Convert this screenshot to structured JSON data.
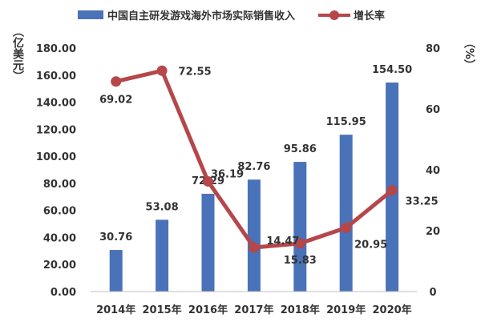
{
  "chart_data": {
    "type": "bar+line",
    "categories": [
      "2014年",
      "2015年",
      "2016年",
      "2017年",
      "2018年",
      "2019年",
      "2020年"
    ],
    "series": [
      {
        "name": "中国自主研发游戏海外市场实际销售收入",
        "type": "bar",
        "axis": "left",
        "color": "#4a72b8",
        "values": [
          30.76,
          53.08,
          72.29,
          82.76,
          95.86,
          115.95,
          154.5
        ],
        "labels": [
          "30.76",
          "53.08",
          "72.29",
          "82.76",
          "95.86",
          "115.95",
          "154.50"
        ]
      },
      {
        "name": "增长率",
        "type": "line",
        "axis": "right",
        "color": "#b5474a",
        "values": [
          69.02,
          72.55,
          36.19,
          14.47,
          15.83,
          20.95,
          33.25
        ],
        "labels": [
          "69.02",
          "72.55",
          "36.19",
          "14.47",
          "15.83",
          "20.95",
          "33.25"
        ]
      }
    ],
    "y_left": {
      "unit_label": "（亿美元）",
      "min": 0,
      "max": 180,
      "ticks": [
        "0.00",
        "20.00",
        "40.00",
        "60.00",
        "80.00",
        "100.00",
        "120.00",
        "140.00",
        "160.00",
        "180.00"
      ]
    },
    "y_right": {
      "unit_label": "（%）",
      "min": 0,
      "max": 80,
      "ticks": [
        "0",
        "20",
        "40",
        "60",
        "80"
      ]
    },
    "legend_position": "top",
    "grid": false
  }
}
